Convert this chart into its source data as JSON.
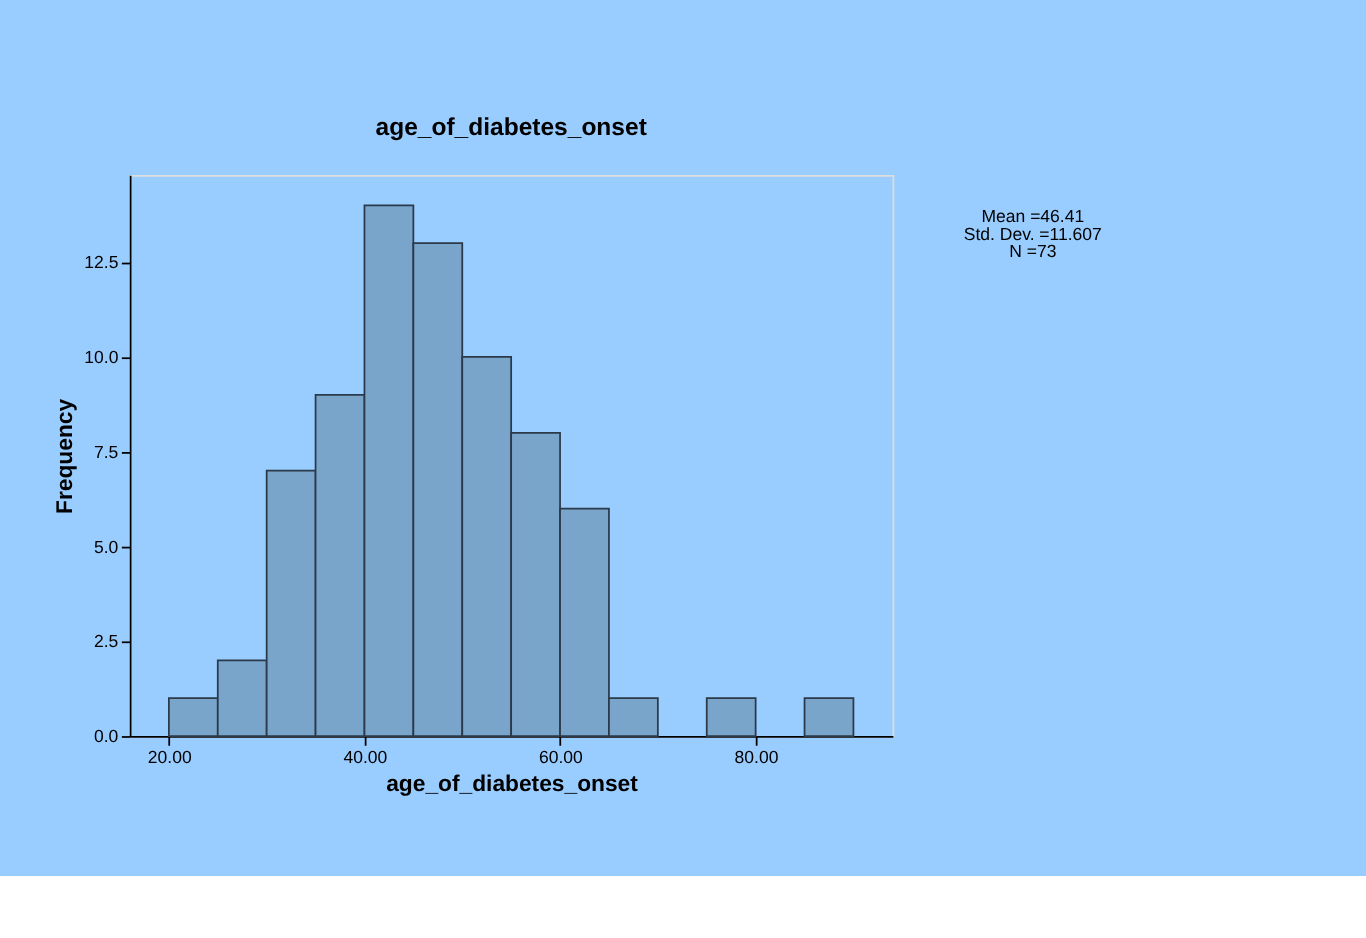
{
  "chart_data": {
    "type": "histogram",
    "title": "age_of_diabetes_onset",
    "xlabel": "age_of_diabetes_onset",
    "ylabel": "Frequency",
    "bins": [
      20,
      25,
      30,
      35,
      40,
      45,
      50,
      55,
      60,
      65,
      70,
      75,
      80,
      85,
      90
    ],
    "values": [
      1,
      2,
      7,
      9,
      14,
      13,
      10,
      8,
      6,
      1,
      0,
      1,
      0,
      1
    ],
    "color": "#7aa5cb",
    "xlim": [
      16,
      94
    ],
    "xticks": [
      {
        "value": 20,
        "label": "20.00"
      },
      {
        "value": 40,
        "label": "40.00"
      },
      {
        "value": 60,
        "label": "60.00"
      },
      {
        "value": 80,
        "label": "80.00"
      }
    ],
    "ylim": [
      0,
      14.8
    ],
    "yticks": [
      {
        "value": 0,
        "label": "0.0"
      },
      2.5,
      {
        "value": 5,
        "label": "5.0"
      },
      7.5,
      {
        "value": 10,
        "label": "10.0"
      },
      12.5
    ],
    "grid": false,
    "annotations": [
      "Mean =46.41",
      "Std. Dev. =11.607",
      "N =73"
    ]
  }
}
